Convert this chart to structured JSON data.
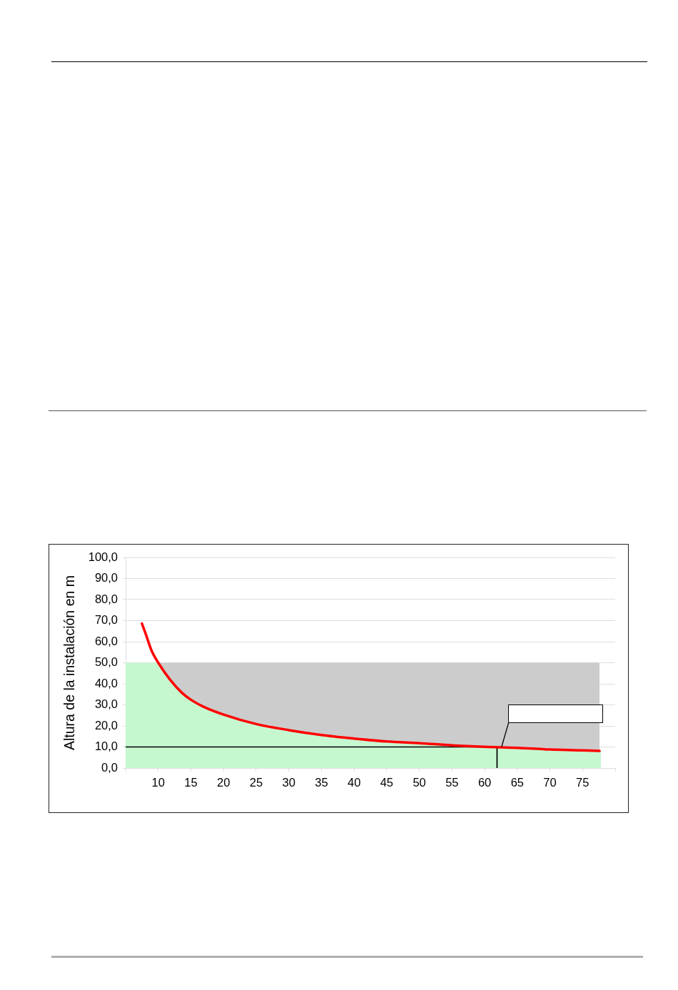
{
  "chart_data": {
    "type": "line",
    "ylabel": "Altura de la instalación en m",
    "xlim": [
      5,
      80
    ],
    "xticks": [
      {
        "value": 5,
        "label": null
      },
      10,
      15,
      20,
      25,
      30,
      35,
      40,
      45,
      50,
      55,
      60,
      65,
      70,
      75,
      {
        "value": 80,
        "label": null
      }
    ],
    "ylim": [
      0,
      100
    ],
    "yticks": [
      {
        "value": 0,
        "label": "0,0"
      },
      {
        "value": 10,
        "label": "10,0"
      },
      {
        "value": 20,
        "label": "20,0"
      },
      {
        "value": 30,
        "label": "30,0"
      },
      {
        "value": 40,
        "label": "40,0"
      },
      {
        "value": 50,
        "label": "50,0"
      },
      {
        "value": 60,
        "label": "60,0"
      },
      {
        "value": 70,
        "label": "70,0"
      },
      {
        "value": 80,
        "label": "80,0"
      },
      {
        "value": 90,
        "label": "90,0"
      },
      {
        "value": 100,
        "label": "100,0"
      }
    ],
    "grid": "y",
    "legend": false,
    "marker": "none",
    "series": [
      {
        "type": "area",
        "color": "#cccccc",
        "x": [
          10,
          77.6
        ],
        "values": [
          50,
          50
        ]
      },
      {
        "type": "area",
        "color": "#c6f8d0",
        "x": [
          5,
          10,
          11.8,
          13.6,
          15,
          16.8,
          20,
          25,
          30,
          35,
          40,
          45,
          50,
          55,
          60,
          65,
          70,
          75,
          77.6,
          77.8
        ],
        "values": [
          50,
          50,
          42,
          35.8,
          32.4,
          29.3,
          25.4,
          20.9,
          18,
          15.7,
          14,
          12.6,
          11.8,
          10.8,
          10.1,
          9.6,
          8.8,
          8.4,
          8.1,
          8.1
        ]
      },
      {
        "type": "line",
        "color": "#000000",
        "x": [
          5,
          61.9,
          61.9
        ],
        "values": [
          10,
          10,
          0
        ]
      },
      {
        "type": "line",
        "color": "#ff0000",
        "x": [
          7.5,
          8.1,
          9,
          10,
          11.8,
          13.6,
          15,
          16.8,
          20,
          25,
          30,
          35,
          40,
          45,
          50,
          55,
          60,
          65,
          70,
          75,
          77.6
        ],
        "values": [
          68.6,
          63.5,
          55.6,
          50,
          42,
          35.8,
          32.4,
          29.3,
          25.4,
          20.9,
          18,
          15.7,
          14,
          12.6,
          11.8,
          10.8,
          10.1,
          9.6,
          8.8,
          8.4,
          8.1
        ]
      }
    ]
  }
}
